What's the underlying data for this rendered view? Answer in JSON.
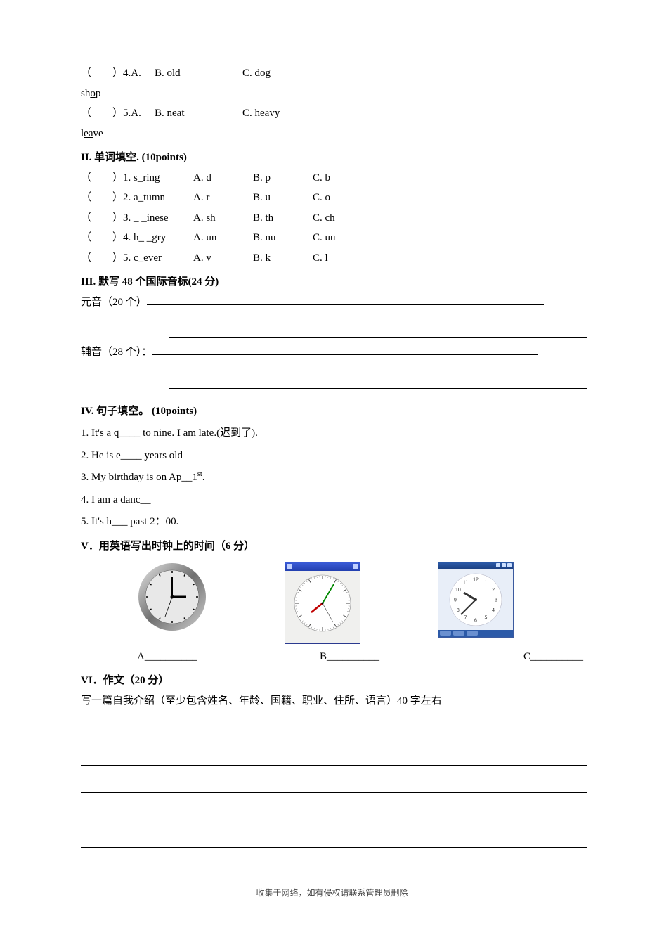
{
  "q4": {
    "prefix": "（　　）4.A. sh",
    "u": "o",
    "post": "p",
    "B_pre": "B. ",
    "B_u": "o",
    "B_post": "ld",
    "C_pre": "C. d",
    "C_u": "o",
    "C_post": "g"
  },
  "q5": {
    "prefix": "（　　）5.A. l",
    "u": "ea",
    "post": "ve",
    "B_pre": "B. n",
    "B_u": "ea",
    "B_post": "t",
    "C_pre": "C. h",
    "C_u": "ea",
    "C_post": "vy"
  },
  "sec2": {
    "title": "II.  单词填空. (10points)"
  },
  "s2q": [
    {
      "n": "（　　）1. s_ring",
      "a": "A. d",
      "b": "B. p",
      "c": "C. b"
    },
    {
      "n": "（　　）2. a_tumn",
      "a": "A. r",
      "b": "B. u",
      "c": "C. o"
    },
    {
      "n": "（　　）3. _ _inese",
      "a": "A. sh",
      "b": "B. th",
      "c": "C. ch"
    },
    {
      "n": "（　　）4. h_ _gry",
      "a": "A. un",
      "b": "B. nu",
      "c": "C. uu"
    },
    {
      "n": "（　　）5. c_ever",
      "a": "A. v",
      "b": "B. k",
      "c": "C. l"
    }
  ],
  "sec3": {
    "title": "III.   默写 48 个国际音标(24 分)"
  },
  "sec3_yuanyin": "元音（20 个）",
  "sec3_fuyin": "辅音（28 个）：",
  "sec4": {
    "title": "IV.  句子填空。  (10points)"
  },
  "s4": [
    "1. It's a q____ to nine. I am late.(迟到了).",
    "2. He is e____ years old",
    "3. My birthday is on Ap__1",
    "4. I am a   danc__",
    "5. It's h___ past 2：00."
  ],
  "s4_sup": "st",
  "s4_suffix": ".",
  "sec5": {
    "title": "V．用英语写出时钟上的时间（6 分）"
  },
  "clock_labels": {
    "A": "A__________",
    "B": "B__________",
    "C": "C__________"
  },
  "clocks": {
    "A": {
      "hour_angle": 90,
      "min_angle": 0,
      "sec_angle": 200,
      "face": "#f5f5f5",
      "rim1": "#dcdcdc",
      "rim2": "#808080",
      "rim3": "#c8c8c8"
    },
    "B": {
      "hour_angle": 250,
      "min_angle": 30,
      "sec_angle": 150,
      "face": "#ffffff",
      "hour_color": "#c00",
      "min_color": "#0a0",
      "border": "#2b3a8f"
    },
    "C": {
      "hour_angle": 300,
      "min_angle": 225,
      "face": "#ffffff",
      "num_color": "#333"
    }
  },
  "sec6": {
    "title": "VI．作文（20 分）"
  },
  "sec6_body": "写一篇自我介绍（至少包含姓名、年龄、国籍、职业、住所、语言）40 字左右",
  "footer": "收集于网络，如有侵权请联系管理员删除"
}
